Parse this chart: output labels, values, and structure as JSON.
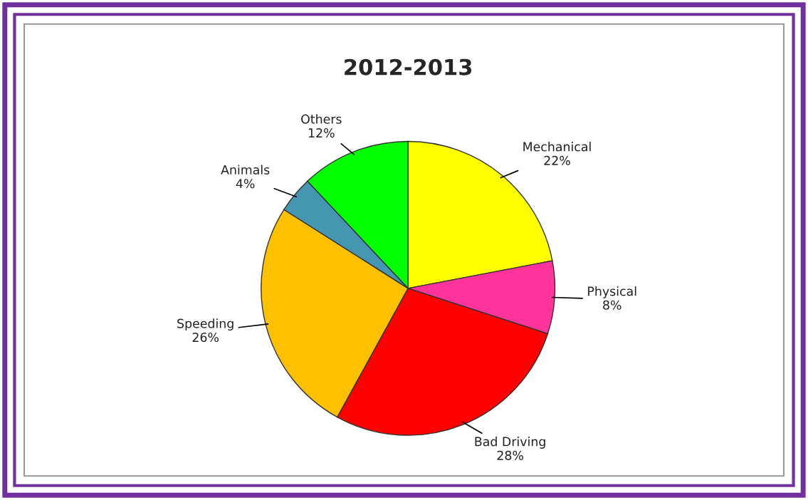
{
  "chart_data": {
    "type": "pie",
    "title": "2012-2013",
    "categories": [
      "Mechanical",
      "Physical",
      "Bad Driving",
      "Speeding",
      "Animals",
      "Others"
    ],
    "values": [
      22,
      8,
      28,
      26,
      4,
      12
    ],
    "colors": [
      "#ffff00",
      "#ff3399",
      "#ff0000",
      "#ffc000",
      "#4596b0",
      "#00ff00"
    ],
    "value_labels": [
      "22%",
      "8%",
      "28%",
      "26%",
      "4%",
      "12%"
    ],
    "legend": false
  }
}
